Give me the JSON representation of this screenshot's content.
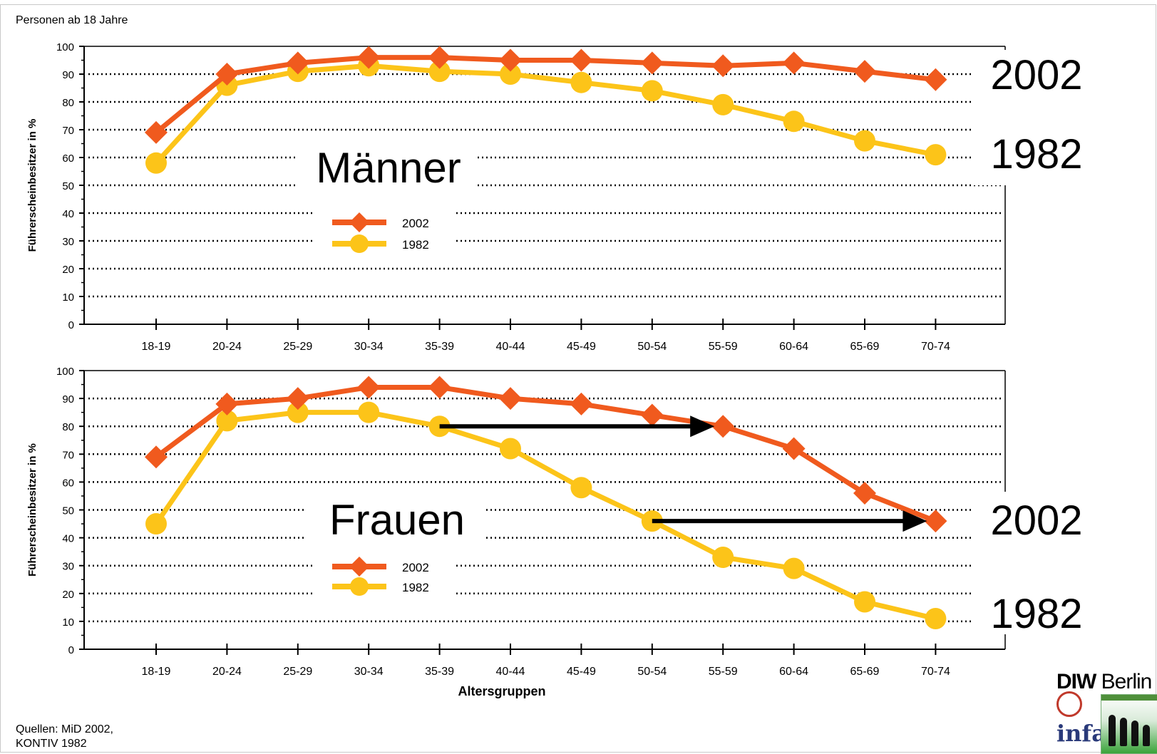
{
  "header": {
    "subtitle": "Personen ab 18 Jahre"
  },
  "footer": {
    "sources_line1": "Quellen: MiD 2002,",
    "sources_line2": "KONTIV 1982"
  },
  "logos": {
    "diw_bold": "DIW",
    "diw_normal": "Berlin",
    "infas": "infas"
  },
  "colors": {
    "series_2002": "#f05a1e",
    "series_1982": "#fcc419",
    "arrow": "#000000",
    "grid": "#000000"
  },
  "chart_data": [
    {
      "type": "line",
      "title": "Männer",
      "ylabel": "Führerscheinbesitzer in %",
      "xlabel": "",
      "ylim": [
        0,
        100
      ],
      "yticks": [
        0,
        10,
        20,
        30,
        40,
        50,
        60,
        70,
        80,
        90,
        100
      ],
      "categories": [
        "18-19",
        "20-24",
        "25-29",
        "30-34",
        "35-39",
        "40-44",
        "45-49",
        "50-54",
        "55-59",
        "60-64",
        "65-69",
        "70-74"
      ],
      "grid": "dotted-horizontal",
      "legend_position": "center-left",
      "series": [
        {
          "name": "2002",
          "marker": "diamond",
          "color": "#f05a1e",
          "values": [
            69,
            90,
            94,
            96,
            96,
            95,
            95,
            94,
            93,
            94,
            91,
            88
          ]
        },
        {
          "name": "1982",
          "marker": "circle",
          "color": "#fcc419",
          "values": [
            58,
            86,
            91,
            93,
            91,
            90,
            87,
            84,
            79,
            73,
            66,
            61
          ]
        }
      ],
      "end_labels": [
        "2002",
        "1982"
      ],
      "arrows": []
    },
    {
      "type": "line",
      "title": "Frauen",
      "ylabel": "Führerscheinbesitzer in %",
      "xlabel": "Altersgruppen",
      "ylim": [
        0,
        100
      ],
      "yticks": [
        0,
        10,
        20,
        30,
        40,
        50,
        60,
        70,
        80,
        90,
        100
      ],
      "categories": [
        "18-19",
        "20-24",
        "25-29",
        "30-34",
        "35-39",
        "40-44",
        "45-49",
        "50-54",
        "55-59",
        "60-64",
        "65-69",
        "70-74"
      ],
      "grid": "dotted-horizontal",
      "legend_position": "center-left",
      "series": [
        {
          "name": "2002",
          "marker": "diamond",
          "color": "#f05a1e",
          "values": [
            69,
            88,
            90,
            94,
            94,
            90,
            88,
            84,
            80,
            72,
            56,
            46
          ]
        },
        {
          "name": "1982",
          "marker": "circle",
          "color": "#fcc419",
          "values": [
            45,
            82,
            85,
            85,
            80,
            72,
            58,
            46,
            33,
            29,
            17,
            11
          ]
        }
      ],
      "end_labels": [
        "2002",
        "1982"
      ],
      "arrows": [
        {
          "from_category": "35-39",
          "to_category": "55-59",
          "value": 80
        },
        {
          "from_category": "50-54",
          "to_category": "70-74",
          "value": 46
        }
      ]
    }
  ]
}
